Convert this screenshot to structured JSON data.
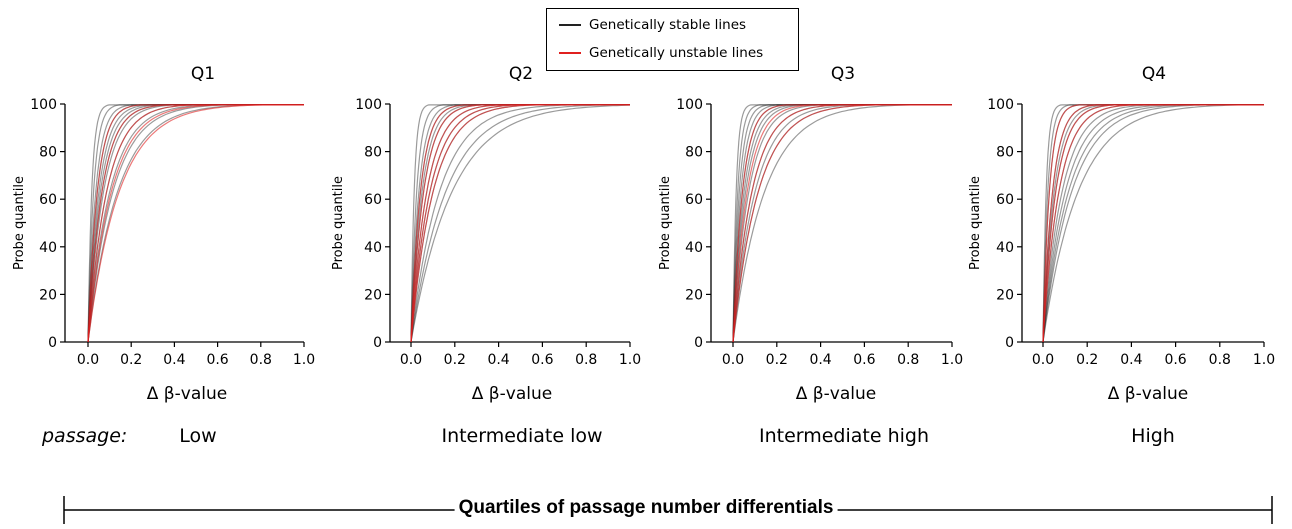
{
  "legend": {
    "stable_label": "Genetically stable lines",
    "unstable_label": "Genetically unstable lines",
    "stable_color": "#222222",
    "unstable_color": "#e0201f"
  },
  "passage_label": "passage:",
  "bottom_title": "Quartiles of passage number differentials",
  "chart_data": [
    {
      "type": "line",
      "title": "Q1",
      "xlabel": "Δ β-value",
      "ylabel": "Probe quantile",
      "passage_level": "Low",
      "xlim": [
        -0.1,
        1.0
      ],
      "ylim": [
        0,
        100
      ],
      "xticks": [
        "0.0",
        "0.2",
        "0.4",
        "0.6",
        "0.8",
        "1.0"
      ],
      "yticks": [
        "0",
        "20",
        "40",
        "60",
        "80",
        "100"
      ],
      "grid": false,
      "series_groups": [
        {
          "group": "stable",
          "x50": [
            0.012,
            0.018,
            0.025,
            0.03,
            0.035,
            0.04,
            0.045,
            0.05,
            0.06,
            0.07,
            0.08,
            0.095
          ]
        },
        {
          "group": "unstable",
          "x50": [
            0.03,
            0.045,
            0.06,
            0.075,
            0.1
          ]
        }
      ]
    },
    {
      "type": "line",
      "title": "Q2",
      "xlabel": "Δ β-value",
      "ylabel": "Probe quantile",
      "passage_level": "Intermediate low",
      "xlim": [
        -0.1,
        1.0
      ],
      "ylim": [
        0,
        100
      ],
      "xticks": [
        "0.0",
        "0.2",
        "0.4",
        "0.6",
        "0.8",
        "1.0"
      ],
      "yticks": [
        "0",
        "20",
        "40",
        "60",
        "80",
        "100"
      ],
      "grid": false,
      "series_groups": [
        {
          "group": "stable",
          "x50": [
            0.01,
            0.018,
            0.025,
            0.03,
            0.035,
            0.04,
            0.05,
            0.06,
            0.07,
            0.09,
            0.11,
            0.13
          ]
        },
        {
          "group": "unstable",
          "x50": [
            0.03,
            0.04,
            0.05,
            0.06,
            0.07
          ]
        }
      ]
    },
    {
      "type": "line",
      "title": "Q3",
      "xlabel": "Δ β-value",
      "ylabel": "Probe quantile",
      "passage_level": "Intermediate high",
      "xlim": [
        -0.1,
        1.0
      ],
      "ylim": [
        0,
        100
      ],
      "xticks": [
        "0.0",
        "0.2",
        "0.4",
        "0.6",
        "0.8",
        "1.0"
      ],
      "yticks": [
        "0",
        "20",
        "40",
        "60",
        "80",
        "100"
      ],
      "grid": false,
      "series_groups": [
        {
          "group": "stable",
          "x50": [
            0.01,
            0.015,
            0.02,
            0.025,
            0.03,
            0.035,
            0.04,
            0.05,
            0.06,
            0.07,
            0.08,
            0.1
          ]
        },
        {
          "group": "unstable",
          "x50": [
            0.03,
            0.045,
            0.06,
            0.08
          ]
        }
      ]
    },
    {
      "type": "line",
      "title": "Q4",
      "xlabel": "Δ β-value",
      "ylabel": "Probe quantile",
      "passage_level": "High",
      "xlim": [
        -0.1,
        1.0
      ],
      "ylim": [
        0,
        100
      ],
      "xticks": [
        "0.0",
        "0.2",
        "0.4",
        "0.6",
        "0.8",
        "1.0"
      ],
      "yticks": [
        "0",
        "20",
        "40",
        "60",
        "80",
        "100"
      ],
      "grid": false,
      "series_groups": [
        {
          "group": "stable",
          "x50": [
            0.01,
            0.015,
            0.02,
            0.03,
            0.035,
            0.04,
            0.05,
            0.06,
            0.07,
            0.08,
            0.09,
            0.11
          ]
        },
        {
          "group": "unstable",
          "x50": [
            0.02,
            0.03,
            0.04,
            0.05
          ]
        }
      ]
    }
  ]
}
